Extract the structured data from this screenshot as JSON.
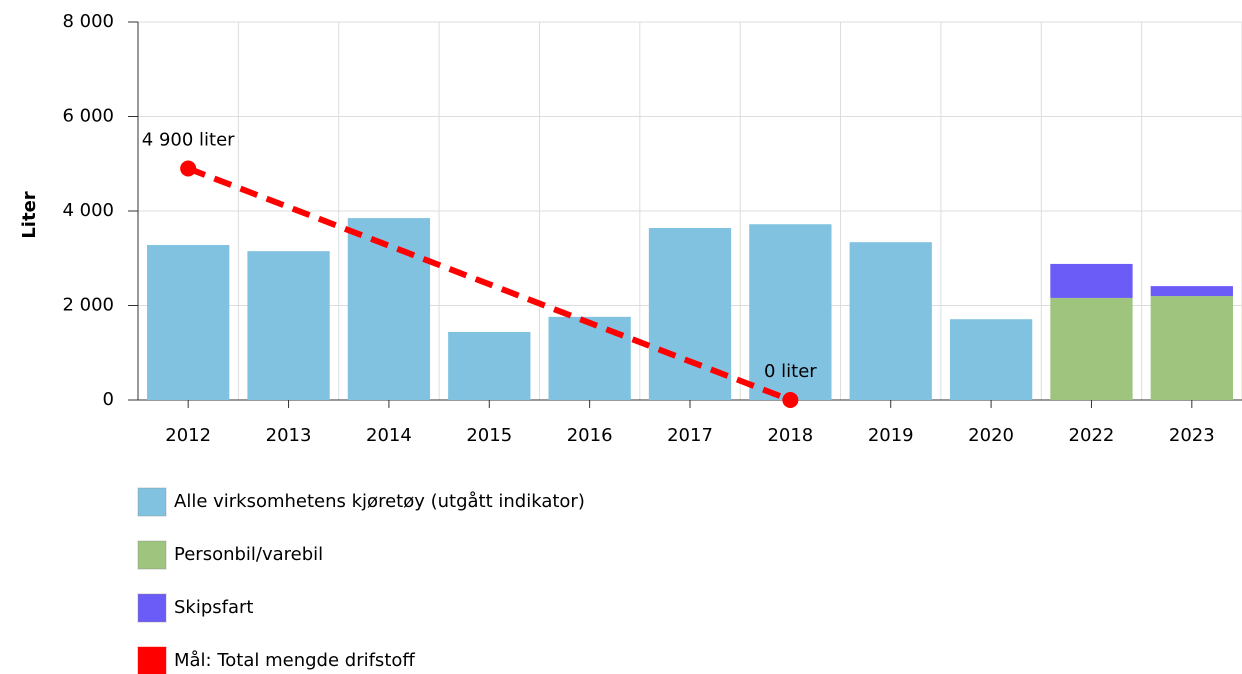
{
  "chart_data": {
    "type": "bar",
    "stacked": true,
    "y_label": "Liter",
    "categories": [
      "2012",
      "2013",
      "2014",
      "2015",
      "2016",
      "2017",
      "2018",
      "2019",
      "2020",
      "2022",
      "2023"
    ],
    "series": [
      {
        "name": "Alle virksomhetens kjøretøy (utgått indikator)",
        "type": "bar",
        "color": "#82c2e1",
        "values": [
          3280,
          3150,
          3850,
          1440,
          1760,
          3640,
          3720,
          3340,
          1710,
          null,
          null
        ]
      },
      {
        "name": "Personbil/varebil",
        "type": "bar",
        "color": "#9ec47e",
        "values": [
          null,
          null,
          null,
          null,
          null,
          null,
          null,
          null,
          null,
          2160,
          2200
        ]
      },
      {
        "name": "Skipsfart",
        "type": "bar",
        "color": "#6b5cf7",
        "values": [
          null,
          null,
          null,
          null,
          null,
          null,
          null,
          null,
          null,
          720,
          210
        ]
      },
      {
        "name": "Mål: Total mengde drifstoff",
        "type": "line",
        "color": "#ff0000",
        "values": [
          4900,
          null,
          null,
          null,
          null,
          null,
          0,
          null,
          null,
          null,
          null
        ],
        "value_labels": [
          "4 900 liter",
          null,
          null,
          null,
          null,
          null,
          "0 liter",
          null,
          null,
          null,
          null
        ]
      }
    ],
    "ylim": [
      0,
      8000
    ],
    "yticks": [
      0,
      {
        "value": 2000,
        "label": "2 000"
      },
      {
        "value": 4000,
        "label": "4 000"
      },
      {
        "value": 6000,
        "label": "6 000"
      },
      {
        "value": 8000,
        "label": "8 000"
      }
    ],
    "grid": true,
    "legend": "bottom"
  }
}
